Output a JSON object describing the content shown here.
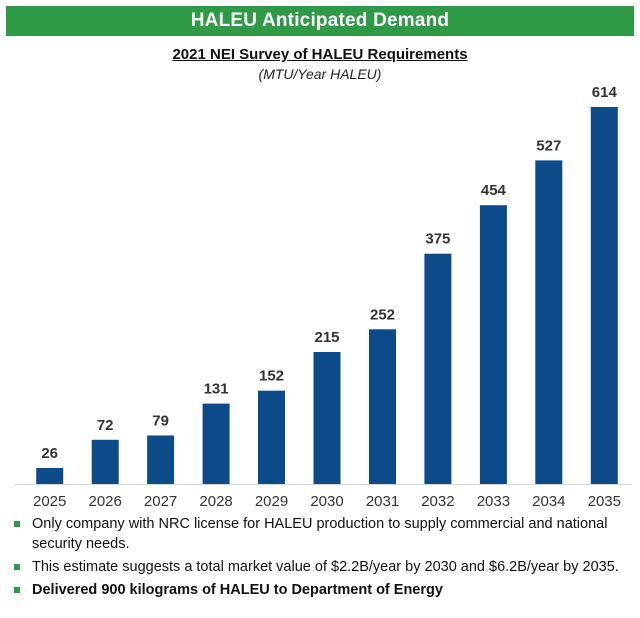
{
  "header": {
    "title": "HALEU Anticipated Demand"
  },
  "chart_data": {
    "type": "bar",
    "title": "2021 NEI Survey of HALEU Requirements",
    "subtitle": "(MTU/Year HALEU)",
    "categories": [
      "2025",
      "2026",
      "2027",
      "2028",
      "2029",
      "2030",
      "2031",
      "2032",
      "2033",
      "2034",
      "2035"
    ],
    "values": [
      26,
      72,
      79,
      131,
      152,
      215,
      252,
      375,
      454,
      527,
      614
    ],
    "data_labels": [
      "26",
      "72",
      "79",
      "131",
      "152",
      "215",
      "252",
      "375",
      "454",
      "527",
      "614"
    ],
    "xlabel": "",
    "ylabel": "",
    "ylim": [
      0,
      614
    ],
    "grid": false,
    "legend": "none",
    "bar_color": "#0d4a8a"
  },
  "bullets": [
    {
      "text": "Only company with NRC license for HALEU production to supply commercial and national security needs.",
      "bold": false
    },
    {
      "text": "This estimate suggests a total market value of $2.2B/year by 2030 and $6.2B/year by 2035.",
      "bold": false
    },
    {
      "text": "Delivered 900 kilograms of HALEU to Department of Energy",
      "bold": true
    }
  ],
  "colors": {
    "accent": "#2e9a45",
    "bar": "#0d4a8a"
  }
}
